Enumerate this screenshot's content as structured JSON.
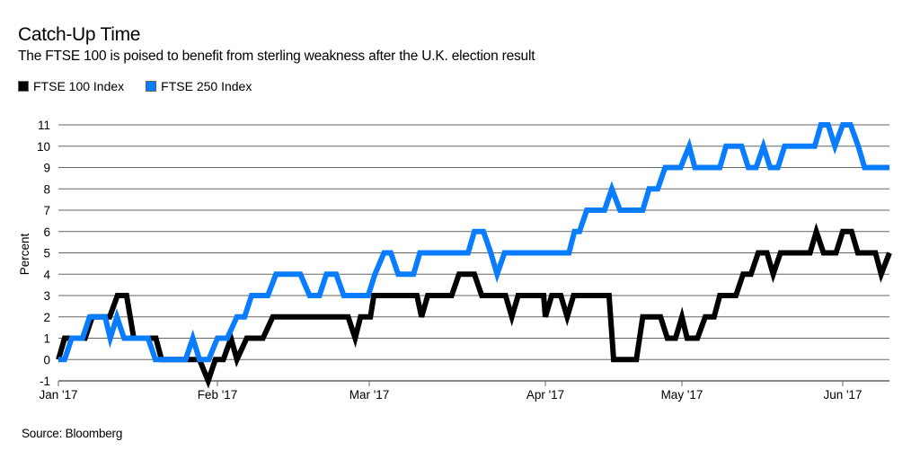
{
  "chart_data": {
    "type": "line",
    "title": "Catch-Up Time",
    "subtitle": "The FTSE 100 is poised to benefit from sterling weakness after the U.K. election result",
    "xlabel": "",
    "ylabel": "Percent",
    "ylim": [
      -1,
      11
    ],
    "yticks": [
      -1,
      0,
      1,
      2,
      3,
      4,
      5,
      6,
      7,
      8,
      9,
      10,
      11
    ],
    "xlim_day_of_year": [
      0,
      159
    ],
    "xticks": [
      {
        "label": "Jan '17",
        "day": 0
      },
      {
        "label": "Feb '17",
        "day": 31
      },
      {
        "label": "Mar '17",
        "day": 59
      },
      {
        "label": "Apr '17",
        "day": 90
      },
      {
        "label": "May '17",
        "day": 120
      },
      {
        "label": "Jun '17",
        "day": 151
      }
    ],
    "grid": true,
    "legend_position": "top-left",
    "x_units": "days since Jan 1 2017 (approx.)",
    "series": [
      {
        "name": "FTSE 100 Index",
        "color": "#000000",
        "points": [
          [
            0,
            0
          ],
          [
            1.2,
            1
          ],
          [
            5.2,
            1
          ],
          [
            6.6,
            2
          ],
          [
            10,
            2
          ],
          [
            11.5,
            3
          ],
          [
            13.3,
            3
          ],
          [
            14.7,
            1
          ],
          [
            19,
            1
          ],
          [
            20.1,
            0
          ],
          [
            27.5,
            0
          ],
          [
            29.2,
            -1
          ],
          [
            30.6,
            0
          ],
          [
            32.1,
            0
          ],
          [
            33.5,
            1
          ],
          [
            34.6,
            0
          ],
          [
            36.4,
            1
          ],
          [
            39.4,
            1
          ],
          [
            41.2,
            2
          ],
          [
            55.1,
            2
          ],
          [
            56.4,
            1
          ],
          [
            57.4,
            2
          ],
          [
            59.2,
            2
          ],
          [
            59.8,
            3
          ],
          [
            67.4,
            3
          ],
          [
            68.2,
            2
          ],
          [
            69.3,
            3
          ],
          [
            73.5,
            3
          ],
          [
            74.8,
            4
          ],
          [
            77.5,
            4
          ],
          [
            78.8,
            3
          ],
          [
            83,
            3
          ],
          [
            84.1,
            2
          ],
          [
            85.2,
            3
          ],
          [
            89.7,
            3
          ],
          [
            90,
            2
          ],
          [
            91.4,
            3
          ],
          [
            93.4,
            3
          ],
          [
            94.8,
            2
          ],
          [
            96.2,
            3
          ],
          [
            104,
            3
          ],
          [
            105,
            0
          ],
          [
            110,
            0
          ],
          [
            111.4,
            2
          ],
          [
            115.3,
            2
          ],
          [
            116.8,
            1
          ],
          [
            118.6,
            1
          ],
          [
            120,
            2
          ],
          [
            121,
            1
          ],
          [
            123,
            1
          ],
          [
            124.5,
            2
          ],
          [
            126.2,
            2
          ],
          [
            127.3,
            3
          ],
          [
            130.4,
            3
          ],
          [
            131.8,
            4
          ],
          [
            133.3,
            4
          ],
          [
            134.7,
            5
          ],
          [
            136.4,
            5
          ],
          [
            137.6,
            4
          ],
          [
            139,
            5
          ],
          [
            144.7,
            5
          ],
          [
            145.9,
            6
          ],
          [
            147.3,
            5
          ],
          [
            149.7,
            5
          ],
          [
            151,
            6
          ],
          [
            152.7,
            6
          ],
          [
            153.9,
            5
          ],
          [
            157.3,
            5
          ],
          [
            158.4,
            4
          ],
          [
            160,
            5
          ]
        ]
      },
      {
        "name": "FTSE 250 Index",
        "color": "#0a7cff",
        "points": [
          [
            0,
            0
          ],
          [
            1.2,
            0
          ],
          [
            2.6,
            1
          ],
          [
            4.7,
            1
          ],
          [
            6.1,
            2
          ],
          [
            9.1,
            2
          ],
          [
            10.1,
            1
          ],
          [
            11.4,
            2
          ],
          [
            12.8,
            1
          ],
          [
            17.5,
            1
          ],
          [
            18.9,
            0
          ],
          [
            24.8,
            0
          ],
          [
            26.2,
            1
          ],
          [
            27.5,
            0
          ],
          [
            29.3,
            0
          ],
          [
            31,
            1
          ],
          [
            32.8,
            1
          ],
          [
            34.6,
            2
          ],
          [
            36,
            2
          ],
          [
            37.3,
            3
          ],
          [
            40.3,
            3
          ],
          [
            41.8,
            4
          ],
          [
            46.3,
            4
          ],
          [
            48,
            3
          ],
          [
            49.8,
            3
          ],
          [
            51.1,
            4
          ],
          [
            52.9,
            4
          ],
          [
            54.3,
            3
          ],
          [
            58.8,
            3
          ],
          [
            60,
            4
          ],
          [
            61.6,
            5
          ],
          [
            62.8,
            5
          ],
          [
            64.1,
            4
          ],
          [
            66.8,
            4
          ],
          [
            67.9,
            5
          ],
          [
            76.4,
            5
          ],
          [
            77.5,
            6
          ],
          [
            79.1,
            6
          ],
          [
            80.4,
            5
          ],
          [
            81.5,
            4
          ],
          [
            82.8,
            5
          ],
          [
            95.2,
            5
          ],
          [
            96.4,
            6
          ],
          [
            97.5,
            6
          ],
          [
            99.1,
            7
          ],
          [
            103,
            7
          ],
          [
            104.6,
            8
          ],
          [
            106.4,
            7
          ],
          [
            111.4,
            7
          ],
          [
            112.8,
            8
          ],
          [
            114.7,
            8
          ],
          [
            116.3,
            9
          ],
          [
            119.7,
            9
          ],
          [
            121.4,
            10
          ],
          [
            122.5,
            9
          ],
          [
            127.3,
            9
          ],
          [
            128.5,
            10
          ],
          [
            131.5,
            10
          ],
          [
            132.8,
            9
          ],
          [
            134.3,
            9
          ],
          [
            135.7,
            10
          ],
          [
            137,
            9
          ],
          [
            138.5,
            9
          ],
          [
            139.8,
            10
          ],
          [
            145.6,
            10
          ],
          [
            146.8,
            11
          ],
          [
            148.2,
            11
          ],
          [
            149.5,
            10
          ],
          [
            151,
            11
          ],
          [
            152.5,
            11
          ],
          [
            154,
            10
          ],
          [
            155.2,
            9
          ],
          [
            160,
            9
          ]
        ]
      }
    ],
    "source": "Source: Bloomberg"
  },
  "legend": [
    {
      "label": "FTSE 100 Index",
      "color": "#000000"
    },
    {
      "label": "FTSE 250 Index",
      "color": "#0a7cff"
    }
  ]
}
